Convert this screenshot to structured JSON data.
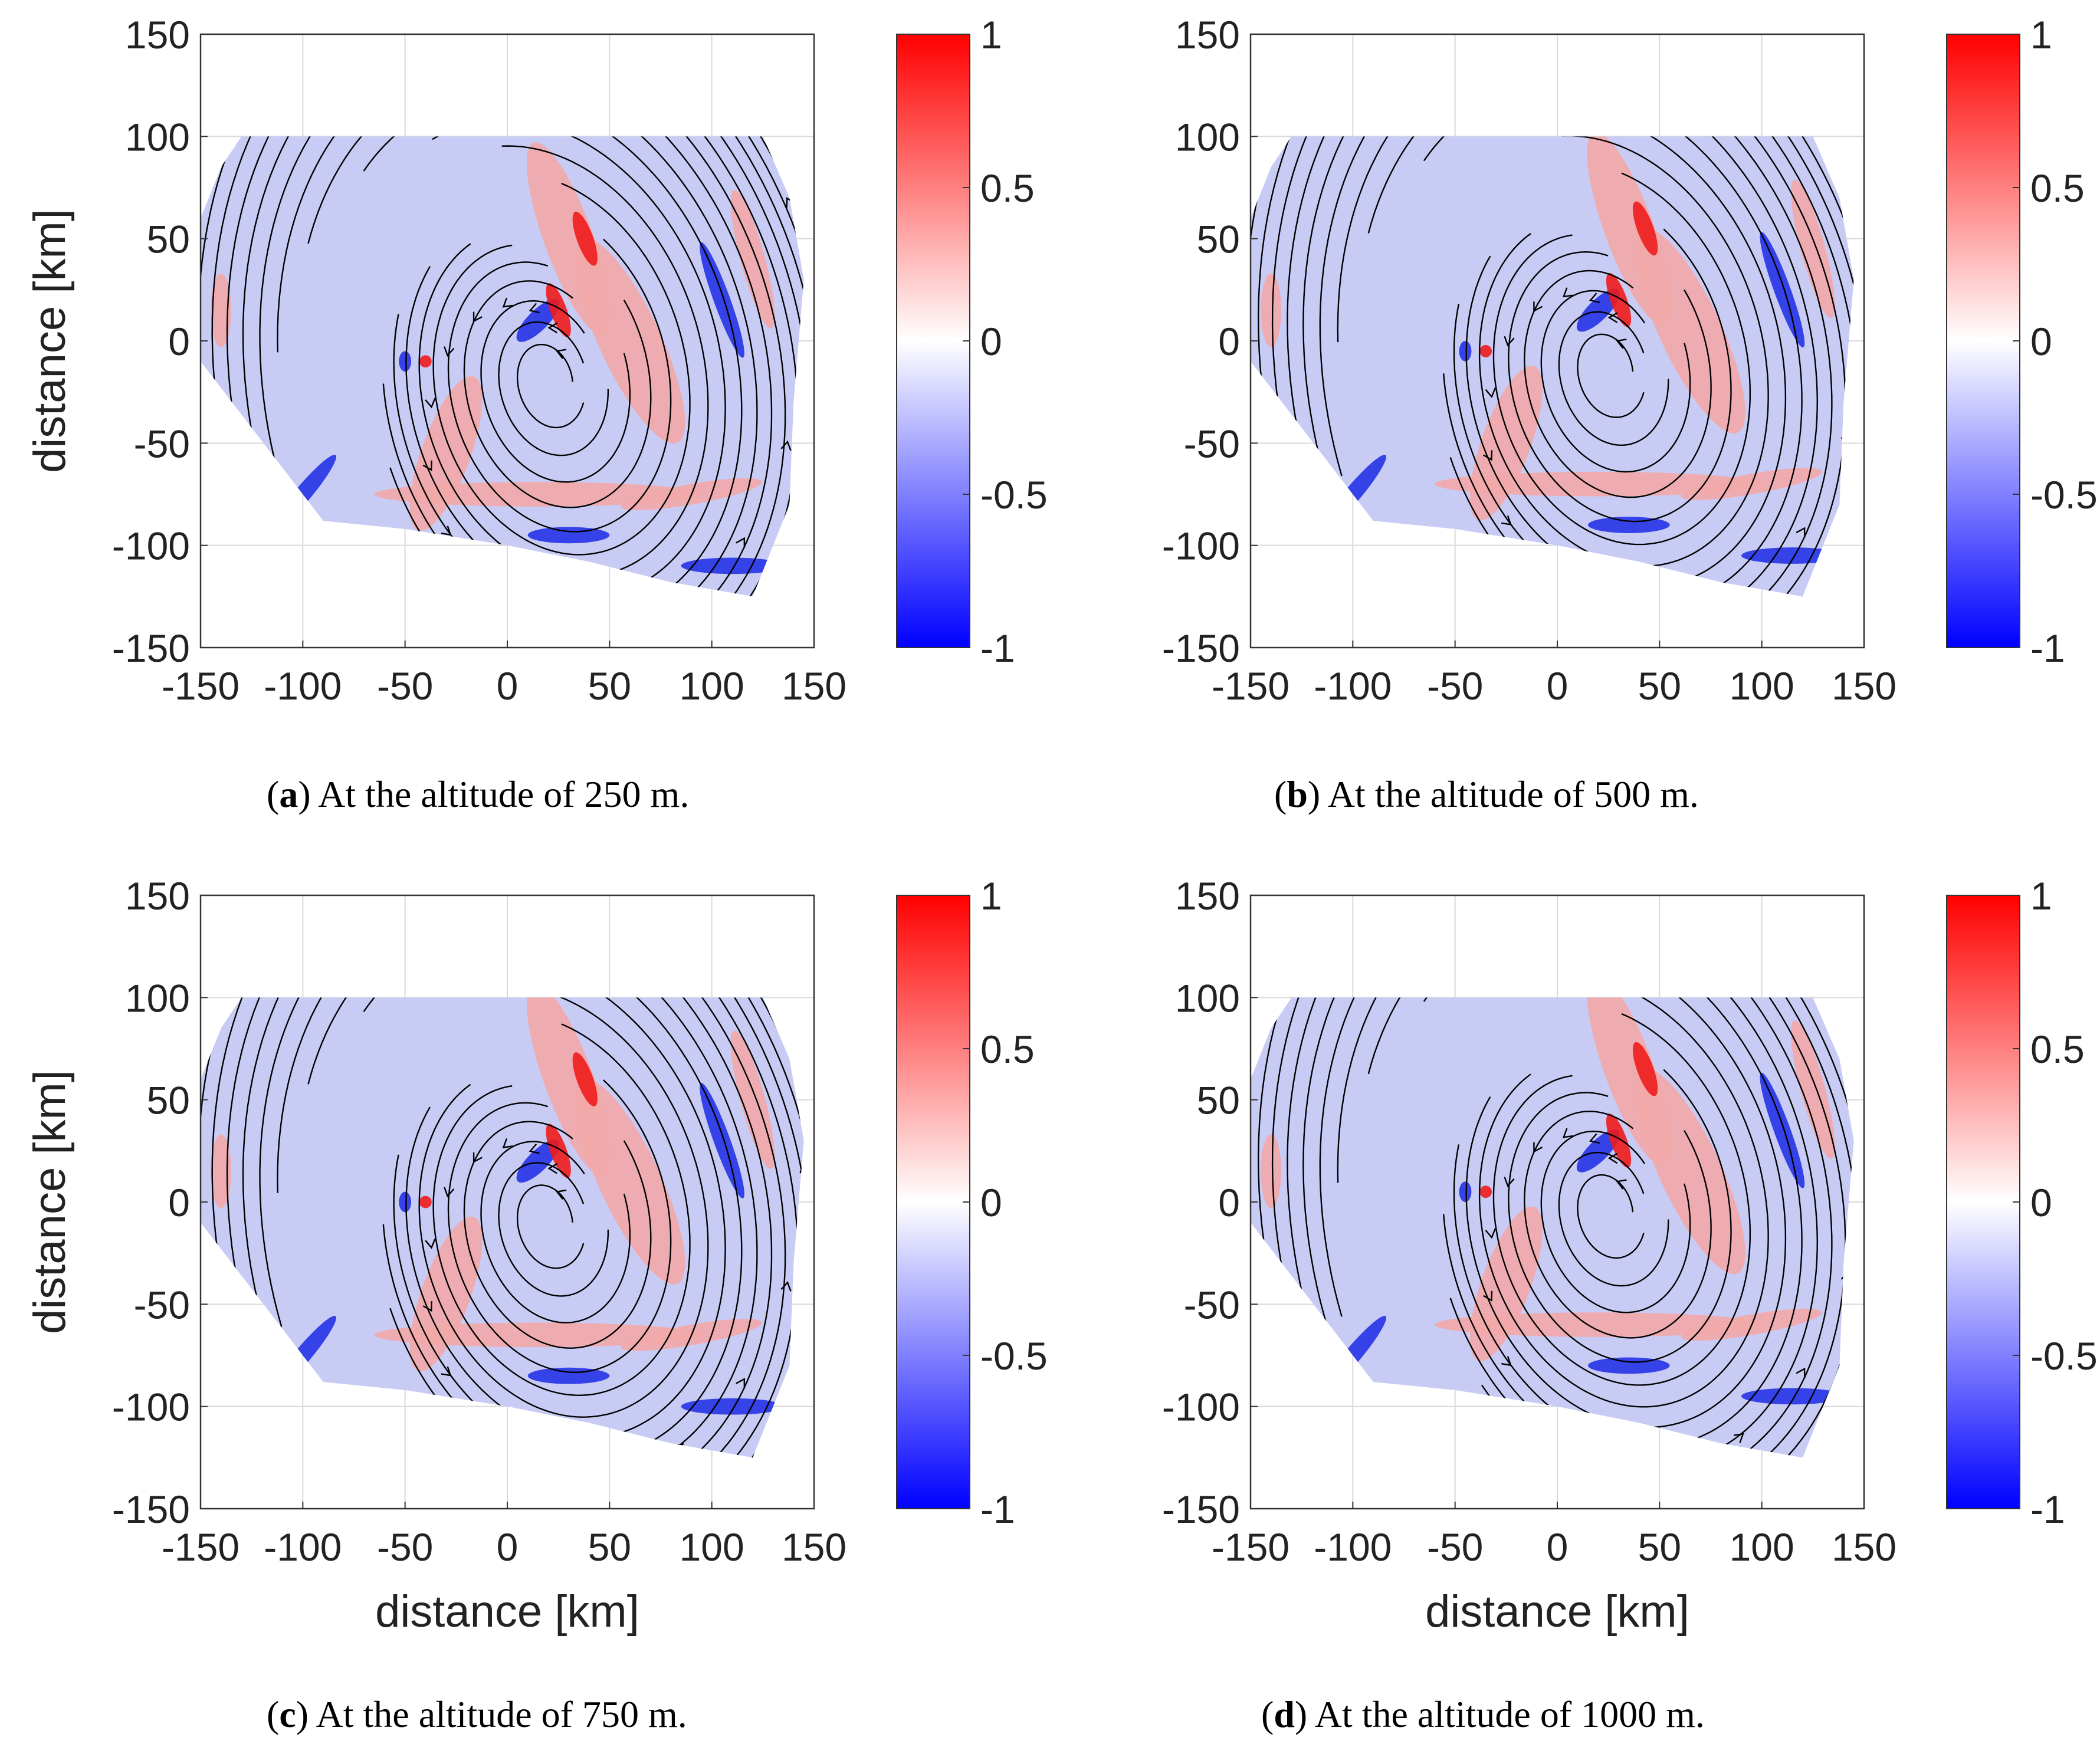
{
  "figure": {
    "colorbar": {
      "ticks": [
        "1",
        "0.5",
        "0",
        "-0.5",
        "-1"
      ],
      "colors": {
        "high": "#ff0000",
        "mid": "#ffffff",
        "low": "#0000ff"
      }
    },
    "xticks": [
      "-150",
      "-100",
      "-50",
      "0",
      "50",
      "100",
      "150"
    ],
    "yticks": [
      "150",
      "100",
      "50",
      "0",
      "-50",
      "-100",
      "-150"
    ],
    "colors": {
      "domain": "#c8ccf5",
      "red_patch": "#f2a8a8",
      "strong_red": "#ee1c1c",
      "strong_blue": "#2433e6",
      "streamline": "#000000",
      "grid": "#d9d9d9"
    }
  },
  "chart_data": [
    {
      "id": "a",
      "type": "streamline-contour",
      "caption_letter": "a",
      "caption_text": " At the altitude of 250 m.",
      "xlabel": "",
      "ylabel": "distance [km]",
      "xlim": [
        -150,
        150
      ],
      "ylim": [
        -150,
        150
      ],
      "clim": [
        -1,
        1
      ],
      "grid": true,
      "vortex_center_km": [
        20,
        -20
      ]
    },
    {
      "id": "b",
      "type": "streamline-contour",
      "caption_letter": "b",
      "caption_text": " At the altitude of 500 m.",
      "xlabel": "",
      "ylabel": "",
      "xlim": [
        -150,
        150
      ],
      "ylim": [
        -150,
        150
      ],
      "clim": [
        -1,
        1
      ],
      "grid": true,
      "vortex_center_km": [
        25,
        -15
      ]
    },
    {
      "id": "c",
      "type": "streamline-contour",
      "caption_letter": "c",
      "caption_text": " At the altitude of 750 m.",
      "xlabel": "distance [km]",
      "ylabel": "distance [km]",
      "xlim": [
        -150,
        150
      ],
      "ylim": [
        -150,
        150
      ],
      "clim": [
        -1,
        1
      ],
      "grid": true,
      "vortex_center_km": [
        20,
        -10
      ]
    },
    {
      "id": "d",
      "type": "streamline-contour",
      "caption_letter": "d",
      "caption_text": " At the altitude of 1000 m.",
      "xlabel": "distance [km]",
      "ylabel": "",
      "xlim": [
        -150,
        150
      ],
      "ylim": [
        -150,
        150
      ],
      "clim": [
        -1,
        1
      ],
      "grid": true,
      "vortex_center_km": [
        25,
        -5
      ]
    }
  ]
}
